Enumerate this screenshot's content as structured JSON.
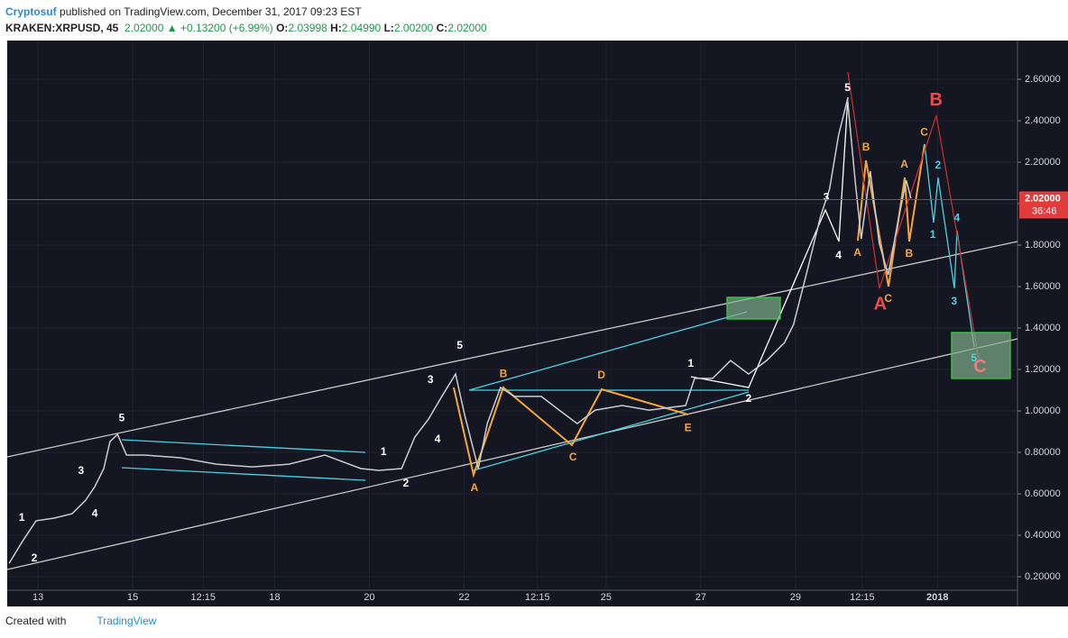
{
  "header": {
    "author": "Cryptosuf",
    "published": "published on TradingView.com, December 31, 2017 09:23 EST",
    "symbol": "KRAKEN:XRPUSD, 45",
    "last": "2.02000",
    "change": "+0.13200 (+6.99%)",
    "open_label": "O:",
    "open": "2.03998",
    "high_label": "H:",
    "high": "2.04990",
    "low_label": "L:",
    "low": "2.00200",
    "close_label": "C:",
    "close": "2.02000"
  },
  "chart_data": {
    "type": "line",
    "color": "#c9ccd3",
    "x": [
      12.39,
      12.68,
      12.96,
      13.34,
      13.72,
      14.01,
      14.2,
      14.39,
      14.52,
      14.68,
      14.87,
      15.25,
      16.01,
      16.77,
      17.53,
      18.3,
      19.06,
      19.82,
      20.2,
      20.68,
      20.96,
      21.25,
      21.53,
      21.82,
      22.01,
      22.3,
      22.49,
      22.77,
      23.06,
      23.63,
      24.01,
      24.39,
      24.77,
      25.34,
      25.91,
      26.68,
      26.87,
      27.25,
      27.63,
      28.01,
      28.39,
      28.77,
      28.96,
      29.25,
      29.53,
      29.72,
      29.91,
      30.1,
      30.26,
      30.39,
      30.58,
      30.77,
      30.96,
      31.15,
      31.34,
      31.44
    ],
    "series": [
      {
        "name": "XRPUSD",
        "values": [
          0.265,
          0.374,
          0.47,
          0.483,
          0.504,
          0.57,
          0.635,
          0.722,
          0.852,
          0.887,
          0.787,
          0.787,
          0.774,
          0.743,
          0.73,
          0.743,
          0.787,
          0.722,
          0.713,
          0.722,
          0.874,
          0.961,
          1.07,
          1.178,
          0.983,
          0.722,
          0.939,
          1.113,
          1.07,
          1.07,
          1.004,
          0.939,
          1.004,
          1.026,
          1.004,
          1.026,
          1.157,
          1.157,
          1.243,
          1.178,
          1.243,
          1.33,
          1.417,
          1.678,
          1.939,
          2.07,
          2.33,
          2.504,
          2.113,
          1.83,
          2.157,
          1.809,
          1.657,
          1.896,
          2.113,
          2.026
        ]
      }
    ],
    "xlim": [
      12.35,
      33.69
    ],
    "ylim": [
      0.135,
      2.787
    ],
    "xticks": [
      13,
      15,
      {
        "value": 16.49,
        "label": "12:15"
      },
      18,
      20,
      22,
      {
        "value": 23.55,
        "label": "12:15"
      },
      25,
      27,
      29,
      {
        "value": 30.41,
        "label": "12:15"
      },
      {
        "value": 32,
        "label": "2018"
      }
    ],
    "yticks": [
      {
        "value": 0.2,
        "label": "0.20000"
      },
      {
        "value": 0.4,
        "label": "0.40000"
      },
      {
        "value": 0.6,
        "label": "0.60000"
      },
      {
        "value": 0.8,
        "label": "0.80000"
      },
      {
        "value": 1.0,
        "label": "1.00000"
      },
      {
        "value": 1.2,
        "label": "1.20000"
      },
      {
        "value": 1.4,
        "label": "1.40000"
      },
      {
        "value": 1.6,
        "label": "1.60000"
      },
      {
        "value": 1.8,
        "label": "1.80000"
      },
      {
        "value": 2.0,
        "label": "2.00000"
      },
      {
        "value": 2.2,
        "label": "2.20000"
      },
      {
        "value": 2.4,
        "label": "2.40000"
      },
      {
        "value": 2.6,
        "label": "2.60000"
      }
    ],
    "current_price": {
      "value": 2.02,
      "label": "2.02000"
    },
    "countdown": "36:46",
    "annotations": [
      {
        "text": "1",
        "x": 12.66,
        "y": 0.483,
        "color": "#ffffff"
      },
      {
        "text": "2",
        "x": 12.92,
        "y": 0.287,
        "color": "#ffffff"
      },
      {
        "text": "3",
        "x": 13.91,
        "y": 0.709,
        "color": "#ffffff"
      },
      {
        "text": "4",
        "x": 14.2,
        "y": 0.504,
        "color": "#ffffff"
      },
      {
        "text": "5",
        "x": 14.77,
        "y": 0.965,
        "color": "#ffffff"
      },
      {
        "text": "1",
        "x": 20.3,
        "y": 0.8,
        "color": "#ffffff"
      },
      {
        "text": "2",
        "x": 20.77,
        "y": 0.648,
        "color": "#ffffff"
      },
      {
        "text": "3",
        "x": 21.29,
        "y": 1.148,
        "color": "#ffffff"
      },
      {
        "text": "4",
        "x": 21.44,
        "y": 0.861,
        "color": "#ffffff"
      },
      {
        "text": "5",
        "x": 21.91,
        "y": 1.313,
        "color": "#ffffff"
      },
      {
        "text": "A",
        "x": 22.22,
        "y": 0.626,
        "color": "#f5a53a"
      },
      {
        "text": "B",
        "x": 22.83,
        "y": 1.178,
        "color": "#f5a53a"
      },
      {
        "text": "C",
        "x": 24.3,
        "y": 0.774,
        "color": "#f5a53a"
      },
      {
        "text": "D",
        "x": 24.9,
        "y": 1.17,
        "color": "#f5a53a"
      },
      {
        "text": "E",
        "x": 26.73,
        "y": 0.917,
        "color": "#f5a53a"
      },
      {
        "text": "1",
        "x": 26.79,
        "y": 1.226,
        "color": "#ffffff"
      },
      {
        "text": "2",
        "x": 28.01,
        "y": 1.057,
        "color": "#ffffff"
      },
      {
        "text": "3",
        "x": 29.65,
        "y": 2.03,
        "color": "#ffffff"
      },
      {
        "text": "4",
        "x": 29.91,
        "y": 1.748,
        "color": "#ffffff"
      },
      {
        "text": "5",
        "x": 30.1,
        "y": 2.557,
        "color": "#ffffff"
      },
      {
        "text": "A",
        "x": 30.31,
        "y": 1.761,
        "color": "#f5a53a"
      },
      {
        "text": "B",
        "x": 30.49,
        "y": 2.27,
        "color": "#f5a53a"
      },
      {
        "text": "A",
        "x": 30.79,
        "y": 1.513,
        "color": "#ef4a4a"
      },
      {
        "text": "C",
        "x": 30.96,
        "y": 1.539,
        "color": "#f5a53a"
      },
      {
        "text": "A",
        "x": 31.3,
        "y": 2.187,
        "color": "#f5a53a"
      },
      {
        "text": "B",
        "x": 31.4,
        "y": 1.757,
        "color": "#f5a53a"
      },
      {
        "text": "C",
        "x": 31.72,
        "y": 2.343,
        "color": "#f5a53a"
      },
      {
        "text": "B",
        "x": 31.97,
        "y": 2.496,
        "color": "#ef4a4a"
      },
      {
        "text": "1",
        "x": 31.9,
        "y": 1.848,
        "color": "#4dd0e1"
      },
      {
        "text": "2",
        "x": 32.01,
        "y": 2.183,
        "color": "#4dd0e1"
      },
      {
        "text": "3",
        "x": 32.35,
        "y": 1.526,
        "color": "#4dd0e1"
      },
      {
        "text": "4",
        "x": 32.41,
        "y": 1.93,
        "color": "#4dd0e1"
      },
      {
        "text": "5",
        "x": 32.77,
        "y": 1.252,
        "color": "#4dd0e1"
      },
      {
        "text": "C",
        "x": 32.9,
        "y": 1.209,
        "color": "#f07b7b"
      }
    ]
  },
  "footer": {
    "created": "Created with",
    "brand": "TradingView"
  }
}
